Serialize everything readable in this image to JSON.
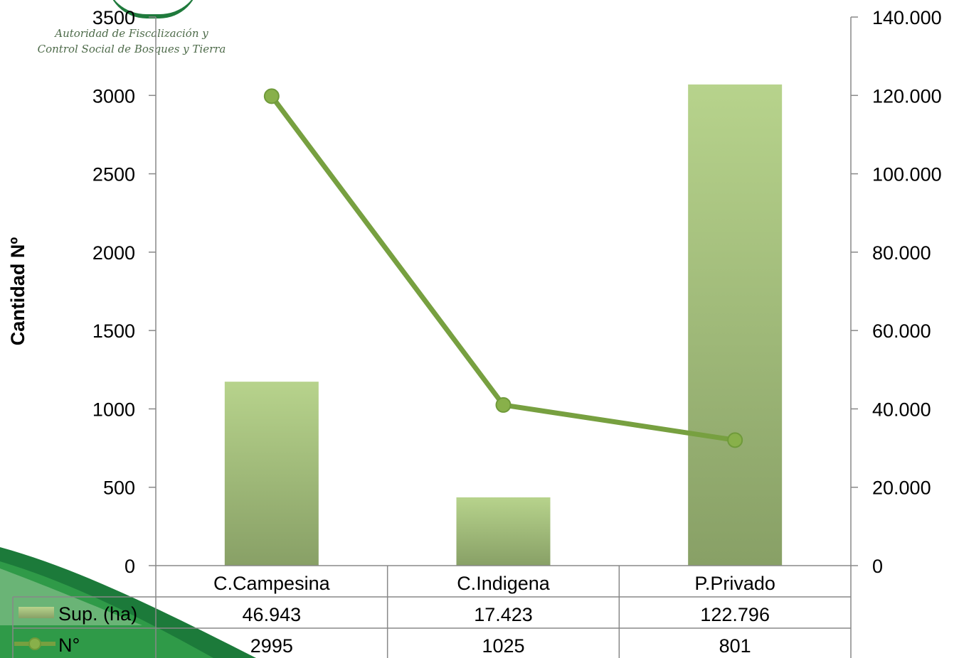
{
  "logo": {
    "line1": "Autoridad de Fiscalización y",
    "line2": "Control Social de Bosques y Tierra"
  },
  "chart_data": {
    "type": "bar",
    "title": "",
    "ylabel": "Cantidad Nº",
    "categories": [
      "C.Campesina",
      "C.Indigena",
      "P.Privado"
    ],
    "ylim": [
      0,
      3500
    ],
    "y_ticks": [
      "0",
      "500",
      "1000",
      "1500",
      "2000",
      "2500",
      "3000",
      "3500"
    ],
    "y2lim": [
      0,
      140000
    ],
    "y2_ticks": [
      "0",
      "20.000",
      "40.000",
      "60.000",
      "80.000",
      "100.000",
      "120.000",
      "140.000"
    ],
    "series": [
      {
        "name": "Sup. (ha)",
        "type": "bar",
        "axis": "secondary",
        "values": [
          46943,
          17423,
          122796
        ],
        "labels": [
          "46.943",
          "17.423",
          "122.796"
        ],
        "color_top": "#b7d38c",
        "color_bottom": "#88a066"
      },
      {
        "name": "N°",
        "type": "line",
        "axis": "primary",
        "values": [
          2995,
          1025,
          801
        ],
        "labels": [
          "2995",
          "1025",
          "801"
        ],
        "color": "#77a040"
      }
    ],
    "legend": "data-table"
  }
}
